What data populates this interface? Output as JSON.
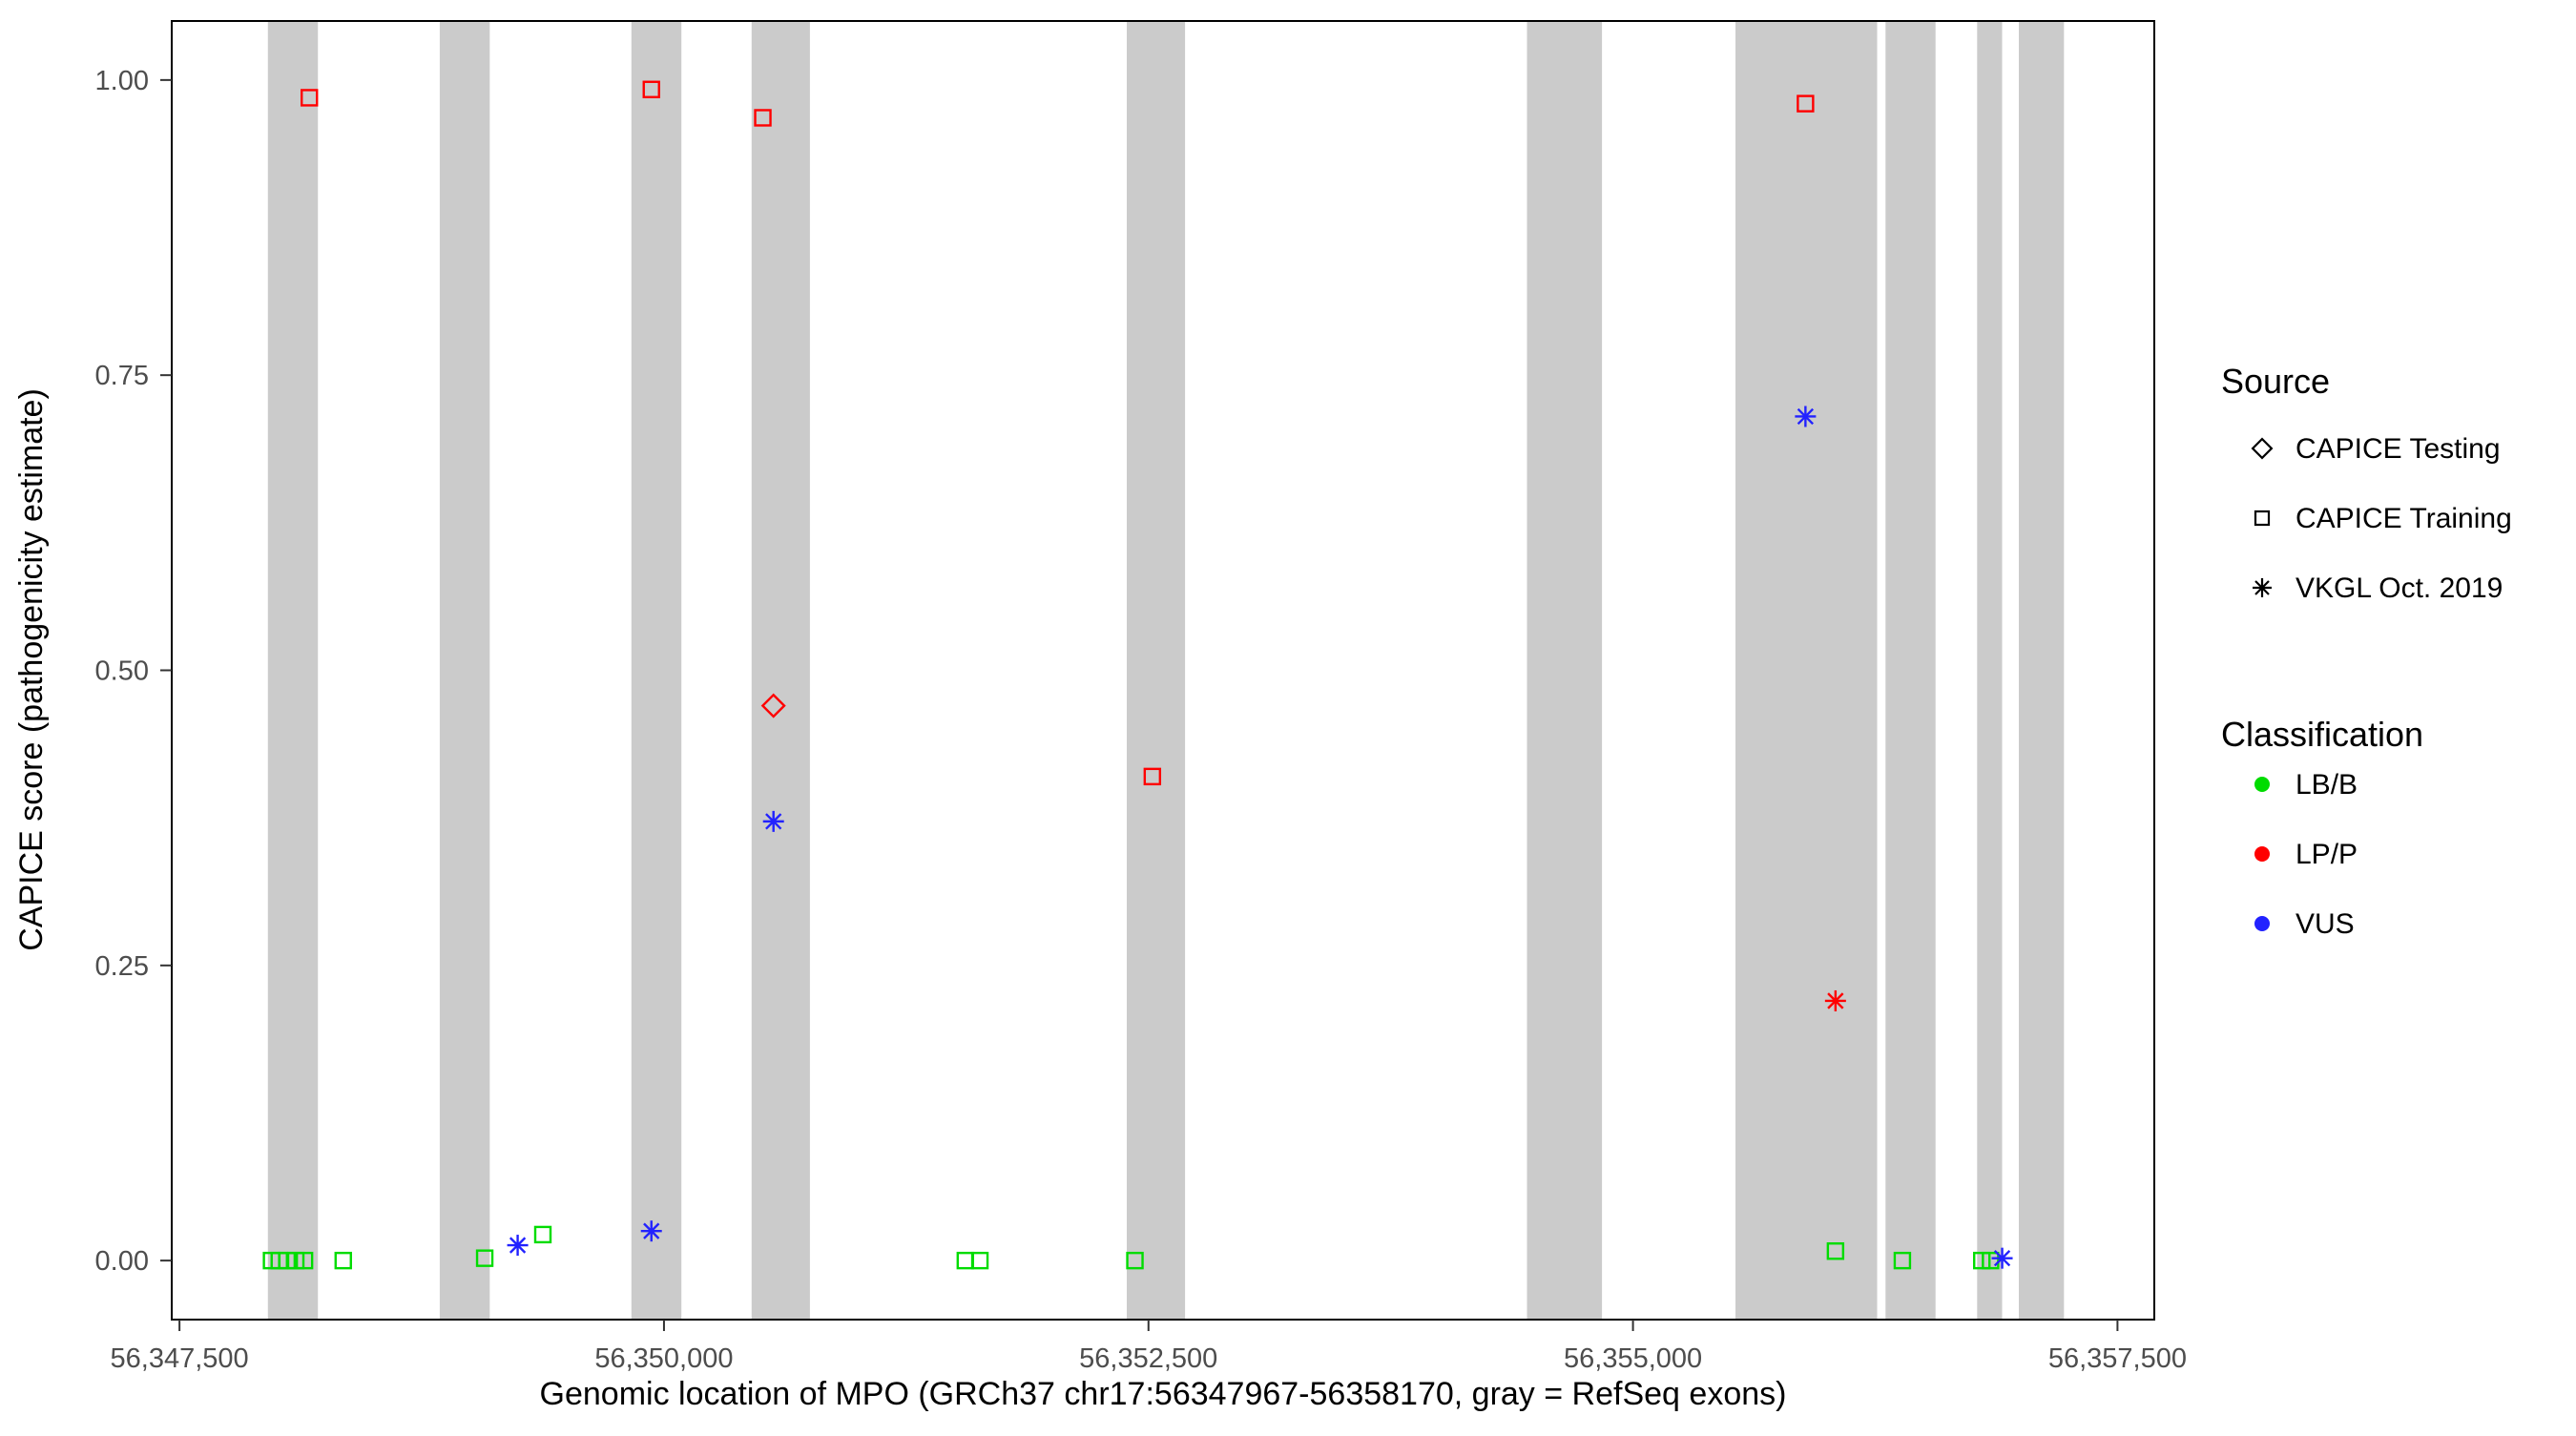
{
  "figure": {
    "kind": "scatter-plot-figure"
  },
  "legend": {
    "source_title": "Source",
    "source_items": [
      {
        "label": "CAPICE Testing",
        "shape": "diamond"
      },
      {
        "label": "CAPICE Training",
        "shape": "square"
      },
      {
        "label": "VKGL Oct. 2019",
        "shape": "asterisk"
      }
    ],
    "classification_title": "Classification",
    "classification_items": [
      {
        "label": "LB/B",
        "color": "#00DC00"
      },
      {
        "label": "LP/P",
        "color": "#FF0000"
      },
      {
        "label": "VUS",
        "color": "#2222FF"
      }
    ]
  },
  "chart_data": {
    "type": "scatter",
    "title": "",
    "xlabel": "Genomic location of MPO (GRCh37 chr17:56347967-56358170, gray = RefSeq exons)",
    "ylabel": "CAPICE score (pathogenicity estimate)",
    "xlim": [
      56347460,
      56357690
    ],
    "ylim": [
      -0.05,
      1.05
    ],
    "grid": false,
    "legend_position": "right",
    "x_ticks": [
      {
        "value": 56347500,
        "label": "56,347,500"
      },
      {
        "value": 56350000,
        "label": "56,350,000"
      },
      {
        "value": 56352500,
        "label": "56,352,500"
      },
      {
        "value": 56355000,
        "label": "56,355,000"
      },
      {
        "value": 56357500,
        "label": "56,357,500"
      }
    ],
    "y_ticks": [
      {
        "value": 0.0,
        "label": "0.00"
      },
      {
        "value": 0.25,
        "label": "0.25"
      },
      {
        "value": 0.5,
        "label": "0.50"
      },
      {
        "value": 0.75,
        "label": "0.75"
      },
      {
        "value": 1.0,
        "label": "1.00"
      }
    ],
    "exon_color": "#CBCBCB",
    "exons": [
      {
        "start": 56347956,
        "end": 56348214
      },
      {
        "start": 56348843,
        "end": 56349101
      },
      {
        "start": 56349832,
        "end": 56350090
      },
      {
        "start": 56350452,
        "end": 56350753
      },
      {
        "start": 56352388,
        "end": 56352689
      },
      {
        "start": 56354453,
        "end": 56354840
      },
      {
        "start": 56355529,
        "end": 56356260
      },
      {
        "start": 56356303,
        "end": 56356561
      },
      {
        "start": 56356776,
        "end": 56356905
      },
      {
        "start": 56356991,
        "end": 56357224
      }
    ],
    "series": [
      {
        "name": "CAPICE Training / LP/P",
        "source": "CAPICE Training",
        "classification": "LP/P",
        "shape": "square",
        "color": "#FF0000",
        "points": [
          [
            56348170,
            0.985
          ],
          [
            56349935,
            0.992
          ],
          [
            56350510,
            0.968
          ],
          [
            56352520,
            0.41
          ],
          [
            56355890,
            0.98
          ]
        ]
      },
      {
        "name": "CAPICE Training / LB/B",
        "source": "CAPICE Training",
        "classification": "LB/B",
        "shape": "square",
        "color": "#00DC00",
        "points": [
          [
            56347975,
            0.0
          ],
          [
            56348015,
            0.0
          ],
          [
            56348055,
            0.0
          ],
          [
            56348100,
            0.0
          ],
          [
            56348145,
            0.0
          ],
          [
            56348345,
            0.0
          ],
          [
            56349075,
            0.002
          ],
          [
            56349375,
            0.022
          ],
          [
            56351555,
            0.0
          ],
          [
            56351630,
            0.0
          ],
          [
            56352430,
            0.0
          ],
          [
            56356045,
            0.008
          ],
          [
            56356390,
            0.0
          ],
          [
            56356800,
            0.0
          ],
          [
            56356845,
            0.0
          ]
        ]
      },
      {
        "name": "CAPICE Testing / LP/P",
        "source": "CAPICE Testing",
        "classification": "LP/P",
        "shape": "diamond",
        "color": "#FF0000",
        "points": [
          [
            56350565,
            0.47
          ]
        ]
      },
      {
        "name": "VKGL Oct. 2019 / VUS",
        "source": "VKGL Oct. 2019",
        "classification": "VUS",
        "shape": "asterisk",
        "color": "#2222FF",
        "points": [
          [
            56349245,
            0.013
          ],
          [
            56349935,
            0.025
          ],
          [
            56350565,
            0.372
          ],
          [
            56355890,
            0.715
          ],
          [
            56356905,
            0.002
          ]
        ]
      },
      {
        "name": "VKGL Oct. 2019 / LP/P",
        "source": "VKGL Oct. 2019",
        "classification": "LP/P",
        "shape": "asterisk",
        "color": "#FF0000",
        "points": [
          [
            56356045,
            0.22
          ]
        ]
      }
    ]
  }
}
